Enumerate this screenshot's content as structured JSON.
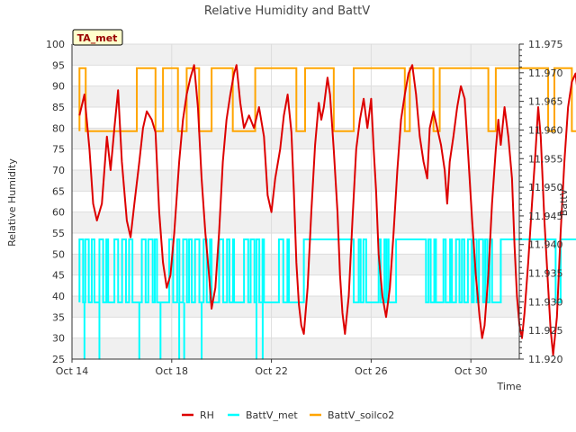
{
  "chart_data": {
    "type": "line",
    "title": "Relative Humidity and BattV",
    "station_label": "TA_met",
    "xlabel": "Time",
    "ylabel_left": "Relative Humidity",
    "ylabel_right": "BattV",
    "x_tick_labels": [
      "Oct 14",
      "Oct 18",
      "Oct 22",
      "Oct 26",
      "Oct 30"
    ],
    "x_range_days": [
      14,
      31.9
    ],
    "ylim_left": [
      25,
      100
    ],
    "yticks_left": [
      25,
      30,
      35,
      40,
      45,
      50,
      55,
      60,
      65,
      70,
      75,
      80,
      85,
      90,
      95,
      100
    ],
    "ylim_right": [
      11.92,
      11.975
    ],
    "yticks_right": [
      "11.920",
      "11.925",
      "11.930",
      "11.935",
      "11.940",
      "11.945",
      "11.950",
      "11.955",
      "11.960",
      "11.965",
      "11.970",
      "11.975"
    ],
    "grid": true,
    "legend_position": "bottom",
    "series": [
      {
        "name": "RH",
        "axis": "left",
        "color": "#dd0000",
        "points": [
          [
            14.3,
            83
          ],
          [
            14.5,
            88
          ],
          [
            14.7,
            75
          ],
          [
            14.85,
            62
          ],
          [
            15.0,
            58
          ],
          [
            15.2,
            62
          ],
          [
            15.4,
            78
          ],
          [
            15.55,
            70
          ],
          [
            15.7,
            80
          ],
          [
            15.85,
            89
          ],
          [
            16.0,
            72
          ],
          [
            16.2,
            58
          ],
          [
            16.35,
            54
          ],
          [
            16.5,
            62
          ],
          [
            16.7,
            72
          ],
          [
            16.85,
            80
          ],
          [
            17.0,
            84
          ],
          [
            17.2,
            82
          ],
          [
            17.35,
            79
          ],
          [
            17.5,
            60
          ],
          [
            17.65,
            48
          ],
          [
            17.8,
            42
          ],
          [
            17.95,
            45
          ],
          [
            18.1,
            55
          ],
          [
            18.3,
            72
          ],
          [
            18.45,
            82
          ],
          [
            18.6,
            88
          ],
          [
            18.75,
            92
          ],
          [
            18.9,
            95
          ],
          [
            19.05,
            85
          ],
          [
            19.2,
            68
          ],
          [
            19.35,
            55
          ],
          [
            19.5,
            45
          ],
          [
            19.6,
            37
          ],
          [
            19.75,
            42
          ],
          [
            19.9,
            55
          ],
          [
            20.05,
            72
          ],
          [
            20.2,
            82
          ],
          [
            20.35,
            88
          ],
          [
            20.5,
            93
          ],
          [
            20.6,
            95
          ],
          [
            20.75,
            86
          ],
          [
            20.9,
            80
          ],
          [
            21.1,
            83
          ],
          [
            21.3,
            80
          ],
          [
            21.5,
            85
          ],
          [
            21.7,
            78
          ],
          [
            21.85,
            64
          ],
          [
            22.0,
            60
          ],
          [
            22.15,
            68
          ],
          [
            22.35,
            75
          ],
          [
            22.5,
            83
          ],
          [
            22.65,
            88
          ],
          [
            22.8,
            79
          ],
          [
            22.9,
            65
          ],
          [
            23.0,
            48
          ],
          [
            23.1,
            38
          ],
          [
            23.2,
            33
          ],
          [
            23.3,
            31
          ],
          [
            23.45,
            42
          ],
          [
            23.6,
            60
          ],
          [
            23.75,
            76
          ],
          [
            23.9,
            86
          ],
          [
            24.0,
            82
          ],
          [
            24.1,
            85
          ],
          [
            24.25,
            92
          ],
          [
            24.35,
            88
          ],
          [
            24.5,
            75
          ],
          [
            24.65,
            60
          ],
          [
            24.75,
            45
          ],
          [
            24.85,
            36
          ],
          [
            24.95,
            31
          ],
          [
            25.1,
            40
          ],
          [
            25.25,
            58
          ],
          [
            25.4,
            75
          ],
          [
            25.55,
            82
          ],
          [
            25.7,
            87
          ],
          [
            25.85,
            80
          ],
          [
            26.0,
            87
          ],
          [
            26.1,
            75
          ],
          [
            26.2,
            65
          ],
          [
            26.3,
            50
          ],
          [
            26.45,
            40
          ],
          [
            26.6,
            35
          ],
          [
            26.75,
            42
          ],
          [
            26.9,
            55
          ],
          [
            27.05,
            70
          ],
          [
            27.2,
            82
          ],
          [
            27.35,
            88
          ],
          [
            27.5,
            93
          ],
          [
            27.65,
            95
          ],
          [
            27.8,
            88
          ],
          [
            27.95,
            78
          ],
          [
            28.1,
            72
          ],
          [
            28.25,
            68
          ],
          [
            28.35,
            80
          ],
          [
            28.5,
            84
          ],
          [
            28.65,
            80
          ],
          [
            28.8,
            76
          ],
          [
            28.95,
            70
          ],
          [
            29.05,
            62
          ],
          [
            29.15,
            72
          ],
          [
            29.3,
            78
          ],
          [
            29.45,
            85
          ],
          [
            29.6,
            90
          ],
          [
            29.75,
            87
          ],
          [
            29.9,
            73
          ],
          [
            30.05,
            58
          ],
          [
            30.2,
            45
          ],
          [
            30.35,
            35
          ],
          [
            30.45,
            30
          ],
          [
            30.55,
            33
          ],
          [
            30.7,
            45
          ],
          [
            30.85,
            62
          ],
          [
            31.0,
            75
          ],
          [
            31.1,
            82
          ],
          [
            31.2,
            76
          ],
          [
            31.35,
            85
          ],
          [
            31.5,
            78
          ],
          [
            31.65,
            68
          ],
          [
            31.75,
            52
          ],
          [
            31.85,
            40
          ],
          [
            31.95,
            33
          ],
          [
            32.05,
            30
          ],
          [
            32.15,
            36
          ],
          [
            32.3,
            48
          ],
          [
            32.45,
            62
          ],
          [
            32.6,
            75
          ],
          [
            32.7,
            85
          ],
          [
            32.8,
            78
          ],
          [
            32.95,
            58
          ],
          [
            33.1,
            42
          ],
          [
            33.2,
            32
          ],
          [
            33.3,
            26
          ],
          [
            33.45,
            35
          ],
          [
            33.6,
            55
          ],
          [
            33.75,
            72
          ],
          [
            33.9,
            85
          ],
          [
            34.05,
            91
          ],
          [
            34.2,
            93
          ],
          [
            34.35,
            85
          ],
          [
            34.45,
            72
          ],
          [
            34.55,
            55
          ],
          [
            34.65,
            40
          ],
          [
            34.75,
            30
          ],
          [
            34.85,
            27
          ],
          [
            35.0,
            38
          ],
          [
            35.15,
            58
          ],
          [
            35.3,
            75
          ],
          [
            35.45,
            85
          ],
          [
            35.55,
            92
          ],
          [
            35.7,
            93
          ],
          [
            35.85,
            78
          ],
          [
            36.0,
            58
          ],
          [
            36.1,
            42
          ],
          [
            36.2,
            32
          ],
          [
            36.3,
            29
          ],
          [
            36.45,
            38
          ],
          [
            36.6,
            55
          ],
          [
            36.75,
            72
          ],
          [
            36.9,
            82
          ],
          [
            37.05,
            90
          ],
          [
            37.2,
            85
          ],
          [
            37.35,
            72
          ],
          [
            37.5,
            55
          ],
          [
            37.6,
            43
          ],
          [
            37.7,
            38
          ],
          [
            37.85,
            42
          ],
          [
            38.0,
            55
          ],
          [
            38.15,
            70
          ],
          [
            38.3,
            78
          ],
          [
            38.45,
            80
          ],
          [
            38.5,
            77
          ]
        ]
      },
      {
        "name": "BattV_met",
        "axis": "right",
        "color": "#00ffff",
        "base": 11.9299,
        "high": 11.9409,
        "events": [
          [
            14.3,
            14.9,
            "fast"
          ],
          [
            15.1,
            15.45,
            "fast"
          ],
          [
            15.7,
            16.5,
            "fast"
          ],
          [
            16.8,
            17.5,
            "fast"
          ],
          [
            17.9,
            19.6,
            "fast"
          ],
          [
            19.9,
            20.5,
            "fast"
          ],
          [
            20.9,
            21.7,
            "fast"
          ],
          [
            22.3,
            22.7,
            "fast"
          ],
          [
            23.3,
            25.3,
            "solid"
          ],
          [
            25.5,
            25.8,
            "fast"
          ],
          [
            26.3,
            26.7,
            "fast"
          ],
          [
            27.0,
            28.2,
            "solid"
          ],
          [
            28.3,
            28.6,
            "fast"
          ],
          [
            28.9,
            30.9,
            "fast"
          ],
          [
            31.2,
            33.4,
            "solid"
          ],
          [
            33.6,
            34.9,
            "solid"
          ],
          [
            35.2,
            37.3,
            "solid"
          ],
          [
            37.5,
            38.3,
            "fast"
          ]
        ],
        "spikes": [
          [
            14.5,
            11.9199
          ],
          [
            15.1,
            11.9199
          ],
          [
            16.7,
            11.9199
          ],
          [
            17.55,
            11.9199
          ],
          [
            18.3,
            11.9199
          ],
          [
            18.5,
            11.9199
          ],
          [
            19.2,
            11.9199
          ],
          [
            21.4,
            11.9199
          ],
          [
            21.65,
            11.9199
          ],
          [
            35.35,
            11.9487
          ]
        ]
      },
      {
        "name": "BattV_soilco2",
        "axis": "right",
        "color": "#ffa500",
        "base": 11.9598,
        "high": 11.9708,
        "segments_high": [
          [
            14.3,
            14.55
          ],
          [
            16.6,
            17.35
          ],
          [
            17.65,
            18.25
          ],
          [
            18.6,
            19.1
          ],
          [
            19.6,
            20.45
          ],
          [
            21.35,
            23.0
          ],
          [
            23.35,
            24.5
          ],
          [
            25.3,
            27.35
          ],
          [
            27.55,
            28.5
          ],
          [
            28.75,
            30.7
          ],
          [
            31.0,
            33.1
          ],
          [
            33.35,
            34.05
          ],
          [
            34.3,
            35.7
          ],
          [
            36.0,
            37.2
          ]
        ],
        "dips": [
          [
            37.4,
            11.9508
          ]
        ],
        "end": 37.55
      }
    ]
  }
}
